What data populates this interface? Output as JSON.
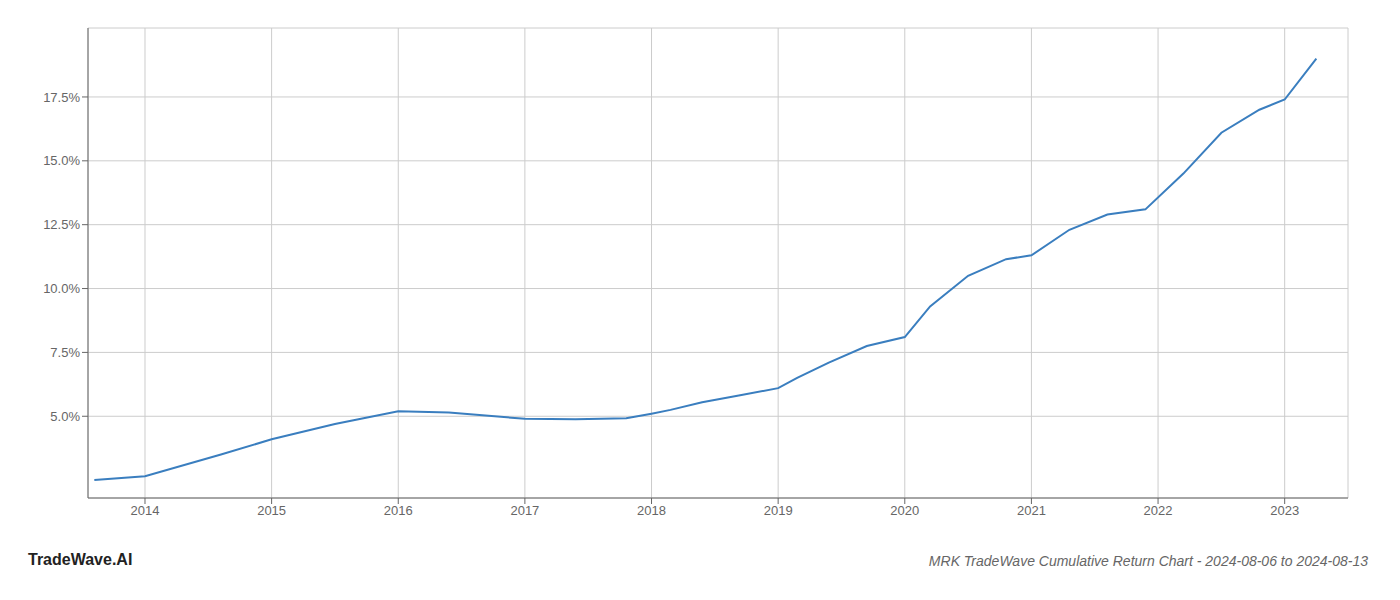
{
  "chart_data": {
    "type": "line",
    "title": "MRK TradeWave Cumulative Return Chart - 2024-08-06 to 2024-08-13",
    "annotations": [
      "TradeWave.AI"
    ],
    "x": [
      2013.6,
      2014.0,
      2014.6,
      2015.0,
      2015.5,
      2016.0,
      2016.4,
      2017.0,
      2017.4,
      2017.8,
      2018.0,
      2018.15,
      2018.4,
      2018.7,
      2019.0,
      2019.15,
      2019.4,
      2019.7,
      2020.0,
      2020.2,
      2020.5,
      2020.8,
      2021.0,
      2021.3,
      2021.6,
      2021.9,
      2022.2,
      2022.5,
      2022.8,
      2023.0,
      2023.25
    ],
    "values": [
      2.5,
      2.65,
      3.5,
      4.1,
      4.7,
      5.2,
      5.15,
      4.9,
      4.88,
      4.92,
      5.1,
      5.25,
      5.55,
      5.82,
      6.1,
      6.5,
      7.1,
      7.75,
      8.1,
      9.3,
      10.5,
      11.15,
      11.3,
      12.3,
      12.9,
      13.1,
      14.5,
      16.1,
      17.0,
      17.4,
      19.0
    ],
    "color": "#3a7ebf",
    "xlim": [
      2013.55,
      2023.5
    ],
    "ylim": [
      1.8,
      20.2
    ],
    "xticks": [
      2014,
      2015,
      2016,
      2017,
      2018,
      2019,
      2020,
      2021,
      2022,
      2023
    ],
    "yticks": [
      {
        "value": 5.0,
        "label": "5.0%"
      },
      {
        "value": 7.5,
        "label": "7.5%"
      },
      {
        "value": 10.0,
        "label": "10.0%"
      },
      {
        "value": 12.5,
        "label": "12.5%"
      },
      {
        "value": 15.0,
        "label": "15.0%"
      },
      {
        "value": 17.5,
        "label": "17.5%"
      }
    ],
    "grid": true
  }
}
